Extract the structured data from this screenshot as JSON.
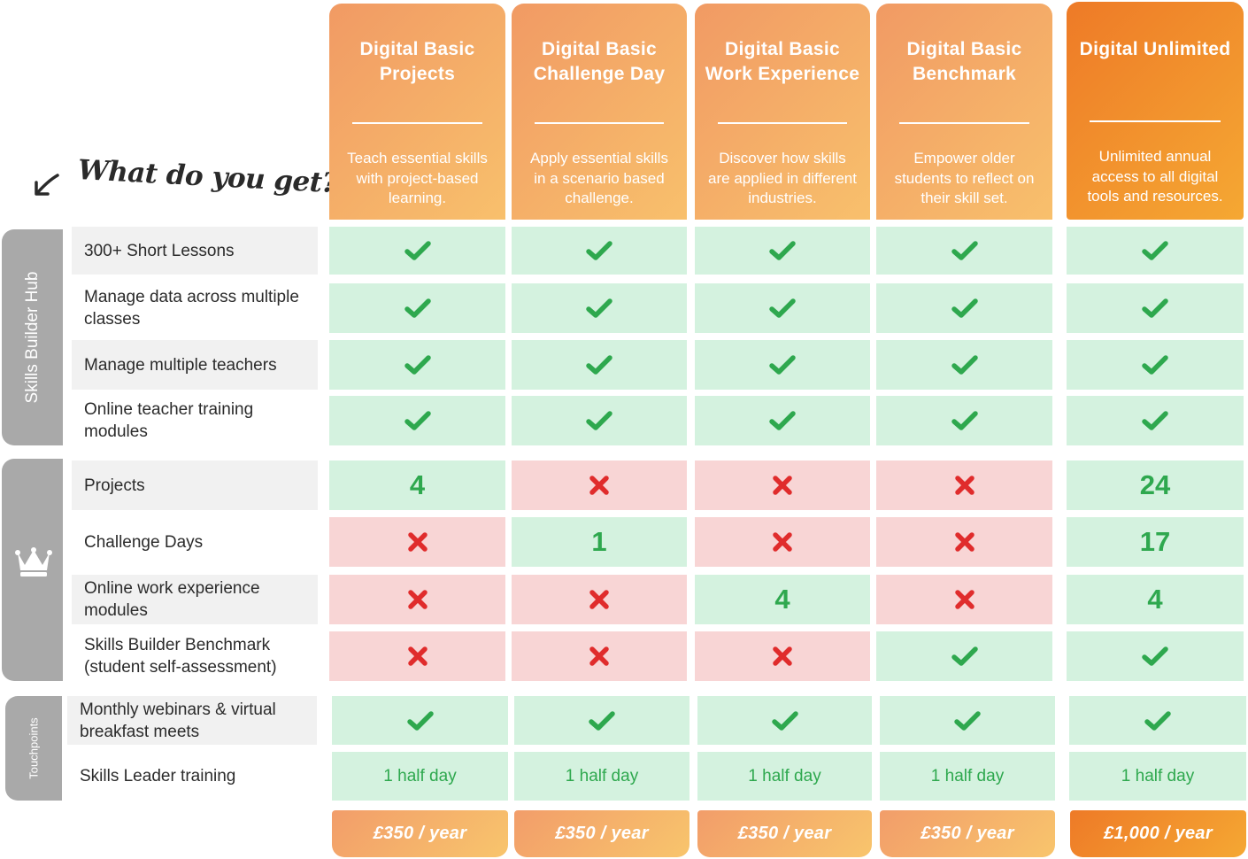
{
  "heading": "What do you get?",
  "plans": [
    {
      "name": "Digital Basic Projects",
      "description": "Teach essential skills with project-based learning.",
      "price": "£350 / year"
    },
    {
      "name": "Digital Basic Challenge Day",
      "description": "Apply essential skills in a scenario based challenge.",
      "price": "£350 / year"
    },
    {
      "name": "Digital Basic Work Experience",
      "description": "Discover how skills are applied in different industries.",
      "price": "£350 / year"
    },
    {
      "name": "Digital Basic Benchmark",
      "description": "Empower older students to reflect on their skill set.",
      "price": "£350 / year"
    },
    {
      "name": "Digital Unlimited",
      "description": "Unlimited annual access to all digital tools and resources.",
      "price": "£1,000 / year"
    }
  ],
  "groups": [
    {
      "label": "Skills Builder Hub"
    },
    {
      "label": "",
      "icon": "crown-icon"
    },
    {
      "label": "Touchpoints"
    }
  ],
  "rows": [
    {
      "label": "300+ Short Lessons",
      "values": [
        "check",
        "check",
        "check",
        "check",
        "check"
      ]
    },
    {
      "label": "Manage data across multiple classes",
      "values": [
        "check",
        "check",
        "check",
        "check",
        "check"
      ]
    },
    {
      "label": "Manage multiple teachers",
      "values": [
        "check",
        "check",
        "check",
        "check",
        "check"
      ]
    },
    {
      "label": "Online teacher training modules",
      "values": [
        "check",
        "check",
        "check",
        "check",
        "check"
      ]
    },
    {
      "label": "Projects",
      "values": [
        "4",
        "cross",
        "cross",
        "cross",
        "24"
      ]
    },
    {
      "label": "Challenge Days",
      "values": [
        "cross",
        "1",
        "cross",
        "cross",
        "17"
      ]
    },
    {
      "label": "Online work experience modules",
      "values": [
        "cross",
        "cross",
        "4",
        "cross",
        "4"
      ]
    },
    {
      "label": "Skills Builder Benchmark (student self-assessment)",
      "values": [
        "cross",
        "cross",
        "cross",
        "check",
        "check"
      ]
    },
    {
      "label": "Monthly webinars & virtual breakfast meets",
      "values": [
        "check",
        "check",
        "check",
        "check",
        "check"
      ]
    },
    {
      "label": "Skills Leader training",
      "values": [
        "1 half day",
        "1 half day",
        "1 half day",
        "1 half day",
        "1 half day"
      ]
    }
  ],
  "colors": {
    "check": "#2ea84e",
    "cross": "#e02c2c",
    "yes_bg": "#d4f2df",
    "no_bg": "#f8d5d5",
    "group_bar": "#a9a9a9",
    "accent_orange": "#ee7a27"
  }
}
